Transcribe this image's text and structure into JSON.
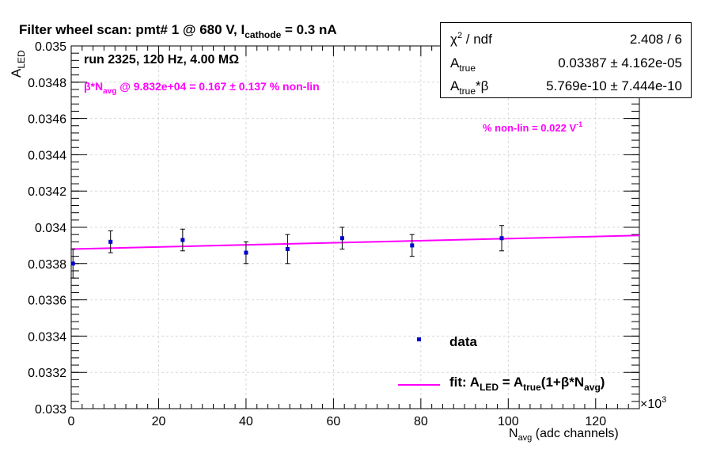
{
  "title": {
    "prefix": "Filter wheel scan: pmt#   1 @   680 V, I",
    "sub": "cathode",
    "suffix": " = 0.3 nA"
  },
  "run_label": "run 2325, 120 Hz, 4.00 MΩ",
  "beta_line": {
    "b": "β*N",
    "sub": "avg",
    "rest": " @ 9.832e+04 = 0.167 ± 0.137 % non-lin"
  },
  "nonlin_label": {
    "text": "% non-lin = 0.022 V",
    "sup": "-1"
  },
  "stats": {
    "row1": {
      "name": "χ",
      "sup": "2",
      "name_rest": " / ndf",
      "value": "2.408 / 6"
    },
    "row2": {
      "name": "A",
      "sub": "true",
      "value": "0.03387 ± 4.162e-05"
    },
    "row3": {
      "name": "A",
      "sub": "true",
      "name_rest": "*β",
      "value": "5.769e-10 ± 7.444e-10"
    }
  },
  "legend": {
    "data_label": "data",
    "fit_label": {
      "p1": "fit: A",
      "s1": "LED",
      "p2": " = A",
      "s2": "true",
      "p3": "(1+β*N",
      "s3": "avg",
      "p4": ")"
    }
  },
  "axes": {
    "ylabel": {
      "main": "A",
      "sub": "LED"
    },
    "xlabel": {
      "main": "N",
      "sub": "avg",
      "rest": " (adc channels)"
    },
    "x_multiplier": {
      "base": "×10",
      "sup": "3"
    }
  },
  "colors": {
    "data": "#0000cc",
    "fit": "#ff00ff",
    "axis": "#000000",
    "grid": "#d9d9d9"
  },
  "chart_data": {
    "type": "scatter",
    "title": "Filter wheel scan: pmt#   1 @   680 V, I cathode = 0.3 nA",
    "xlabel": "N avg (adc channels)",
    "ylabel": "A LED",
    "x_units_multiplier": 1000,
    "xlim": [
      0,
      130
    ],
    "ylim": [
      0.033,
      0.035
    ],
    "grid": true,
    "x_ticks": [
      0,
      20,
      40,
      60,
      80,
      100,
      120
    ],
    "x_tick_labels": [
      "0",
      "20",
      "40",
      "60",
      "80",
      "100",
      "120"
    ],
    "y_ticks": [
      0.033,
      0.0332,
      0.0334,
      0.0336,
      0.0338,
      0.034,
      0.0342,
      0.0344,
      0.0346,
      0.0348,
      0.035
    ],
    "y_tick_labels": [
      "0.033",
      "0.0332",
      "0.0334",
      "0.0336",
      "0.0338",
      "0.034",
      "0.0342",
      "0.0344",
      "0.0346",
      "0.0348",
      "0.035"
    ],
    "series": [
      {
        "name": "data",
        "type": "scatter",
        "points": [
          {
            "x": 0.4,
            "y": 0.0338,
            "err": 8e-05
          },
          {
            "x": 9.0,
            "y": 0.03392,
            "err": 6e-05
          },
          {
            "x": 25.5,
            "y": 0.03393,
            "err": 6e-05
          },
          {
            "x": 40.0,
            "y": 0.03386,
            "err": 6e-05
          },
          {
            "x": 49.5,
            "y": 0.03388,
            "err": 8e-05
          },
          {
            "x": 62.0,
            "y": 0.03394,
            "err": 6e-05
          },
          {
            "x": 78.0,
            "y": 0.0339,
            "err": 6e-05
          },
          {
            "x": 98.5,
            "y": 0.03394,
            "err": 7e-05
          }
        ]
      },
      {
        "name": "fit: A_LED = A_true(1+β*N_avg)",
        "type": "line",
        "x": [
          0,
          130
        ],
        "y": [
          0.03388,
          0.033955
        ]
      }
    ],
    "legend_position": "bottom-right"
  }
}
